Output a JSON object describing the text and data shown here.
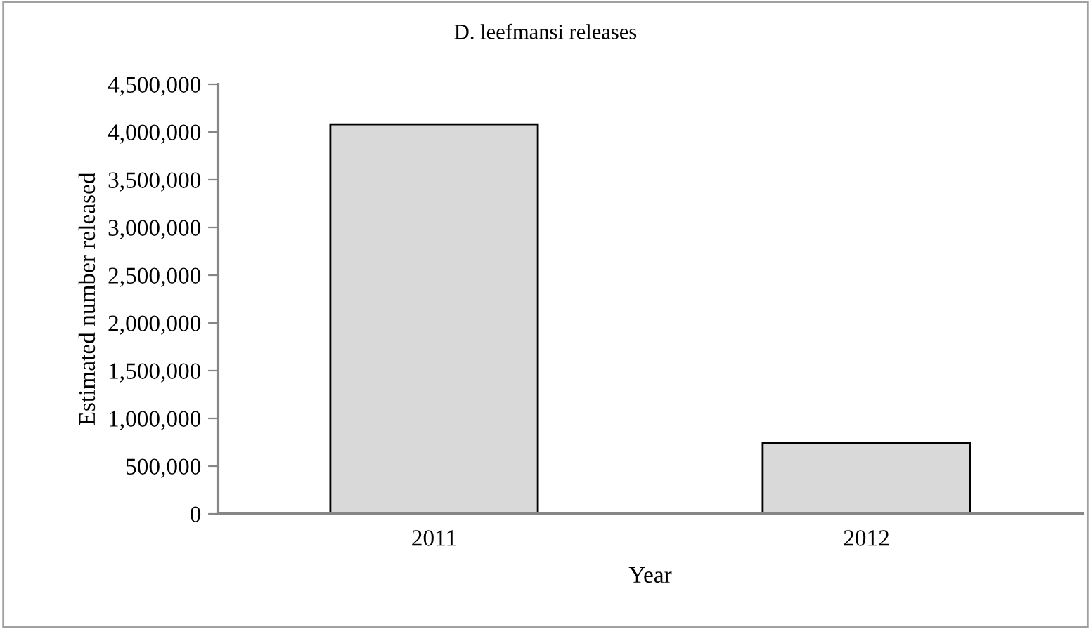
{
  "chart_data": {
    "type": "bar",
    "title": "D. leefmansi releases",
    "xlabel": "Year",
    "ylabel": "Estimated number released",
    "categories": [
      "2011",
      "2012"
    ],
    "values": [
      4080000,
      740000
    ],
    "color": "#d9d9d9",
    "ylim": [
      0,
      4500000
    ],
    "yticks": [
      {
        "value": 0,
        "label": "0"
      },
      {
        "value": 500000,
        "label": "500,000"
      },
      {
        "value": 1000000,
        "label": "1,000,000"
      },
      {
        "value": 1500000,
        "label": "1,500,000"
      },
      {
        "value": 2000000,
        "label": "2,000,000"
      },
      {
        "value": 2500000,
        "label": "2,500,000"
      },
      {
        "value": 3000000,
        "label": "3,000,000"
      },
      {
        "value": 3500000,
        "label": "3,500,000"
      },
      {
        "value": 4000000,
        "label": "4,000,000"
      },
      {
        "value": 4500000,
        "label": "4,500,000"
      }
    ],
    "grid": false,
    "legend": false
  }
}
